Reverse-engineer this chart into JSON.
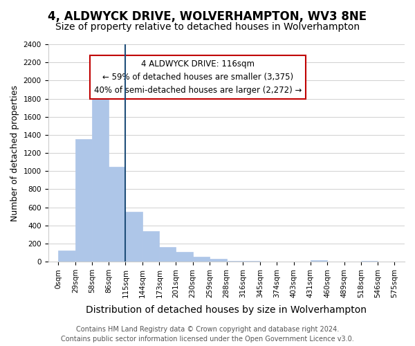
{
  "title": "4, ALDWYCK DRIVE, WOLVERHAMPTON, WV3 8NE",
  "subtitle": "Size of property relative to detached houses in Wolverhampton",
  "xlabel": "Distribution of detached houses by size in Wolverhampton",
  "ylabel": "Number of detached properties",
  "footer_lines": [
    "Contains HM Land Registry data © Crown copyright and database right 2024.",
    "Contains public sector information licensed under the Open Government Licence v3.0."
  ],
  "bin_edges": [
    0,
    29,
    58,
    86,
    115,
    144,
    173,
    201,
    230,
    259,
    288,
    316,
    345,
    374,
    403,
    431,
    460,
    489,
    518,
    546,
    575
  ],
  "bin_labels": [
    "0sqm",
    "29sqm",
    "58sqm",
    "86sqm",
    "115sqm",
    "144sqm",
    "173sqm",
    "201sqm",
    "230sqm",
    "259sqm",
    "288sqm",
    "316sqm",
    "345sqm",
    "374sqm",
    "403sqm",
    "431sqm",
    "460sqm",
    "489sqm",
    "518sqm",
    "546sqm",
    "575sqm"
  ],
  "bar_values": [
    125,
    1350,
    1890,
    1050,
    550,
    335,
    160,
    105,
    55,
    30,
    10,
    5,
    0,
    0,
    0,
    15,
    0,
    0,
    5,
    0
  ],
  "bar_color": "#aec6e8",
  "bar_edge_color": "#aec6e8",
  "marker_bin_index": 4,
  "marker_line_color": "#1f4e79",
  "annotation_box_text": "4 ALDWYCK DRIVE: 116sqm\n← 59% of detached houses are smaller (3,375)\n40% of semi-detached houses are larger (2,272) →",
  "annotation_box_edgecolor": "#c00000",
  "annotation_box_facecolor": "#ffffff",
  "ylim": [
    0,
    2400
  ],
  "yticks": [
    0,
    200,
    400,
    600,
    800,
    1000,
    1200,
    1400,
    1600,
    1800,
    2000,
    2200,
    2400
  ],
  "background_color": "#ffffff",
  "grid_color": "#d0d0d0",
  "title_fontsize": 12,
  "subtitle_fontsize": 10,
  "xlabel_fontsize": 10,
  "ylabel_fontsize": 9,
  "tick_fontsize": 7.5,
  "annotation_fontsize": 8.5,
  "footer_fontsize": 7
}
